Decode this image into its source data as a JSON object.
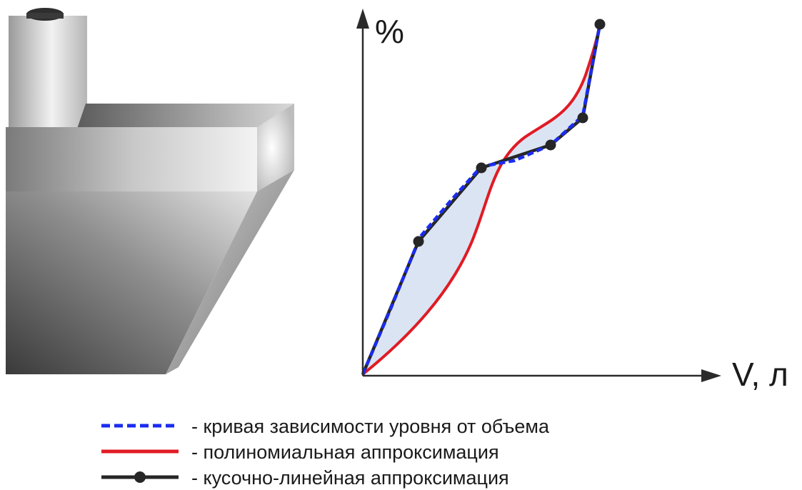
{
  "axes": {
    "y_label": "%",
    "x_label": "V, л"
  },
  "legend": [
    {
      "text": "- кривая зависимости уровня от объема",
      "style": "dashed",
      "color": "#1a2cf0"
    },
    {
      "text": "- полиномиальная аппроксимация",
      "style": "solid",
      "color": "#e01b24"
    },
    {
      "text": "- кусочно-линейная аппроксимация",
      "style": "line-with-markers",
      "color": "#262626"
    }
  ],
  "colors": {
    "curve": "#1a2cf0",
    "polynomial": "#e01b24",
    "piecewise": "#262626",
    "fill": "#dbe4f3",
    "axis": "#2b2b2b",
    "tank": "#8a8a8a"
  },
  "icons": {
    "tank": "fuel-tank-illustration"
  }
}
